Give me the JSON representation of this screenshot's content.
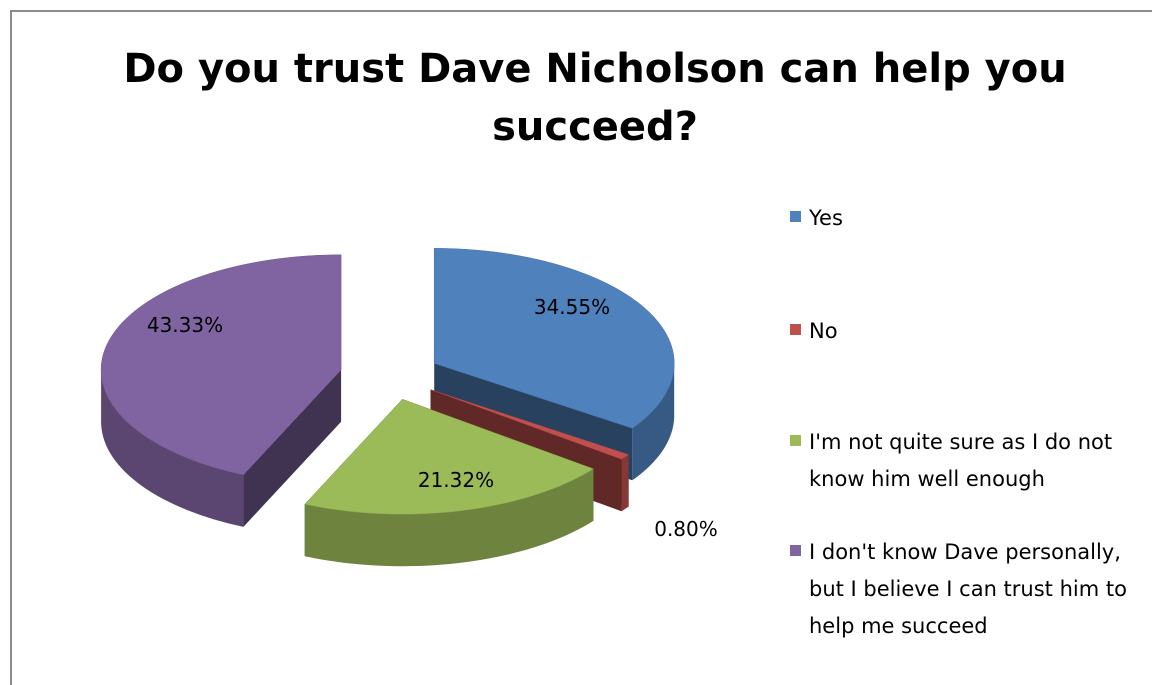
{
  "chart_data": {
    "type": "pie",
    "title": "Do you trust Dave Nicholson can help you succeed?",
    "slices": [
      {
        "label": "Yes",
        "value": 34.55,
        "value_label": "34.55%",
        "color": "#4f81bd"
      },
      {
        "label": "No",
        "value": 0.8,
        "value_label": "0.80%",
        "color": "#c0504d"
      },
      {
        "label": "I'm not quite sure as I do not know him well enough",
        "value": 21.32,
        "value_label": "21.32%",
        "color": "#9bbb59"
      },
      {
        "label": "I don't know Dave personally, but I believe I can trust him to help me succeed",
        "value": 43.33,
        "value_label": "43.33%",
        "color": "#8064a2"
      }
    ],
    "style": "3d-exploded",
    "legend_position": "right"
  },
  "legend": {
    "items": [
      {
        "label": "Yes"
      },
      {
        "label": "No"
      },
      {
        "label": "I'm not quite sure as I do not know him well enough"
      },
      {
        "label": "I don't know Dave personally, but I believe I can trust him to help me succeed"
      }
    ]
  }
}
